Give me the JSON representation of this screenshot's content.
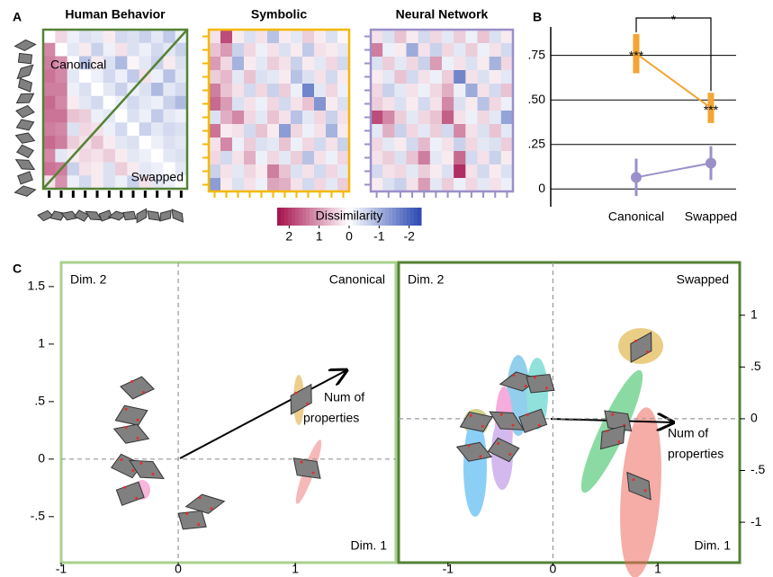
{
  "panel_labels": [
    "A",
    "B",
    "C"
  ],
  "chart_data": [
    {
      "type": "heatmap",
      "title": "Human Behavior",
      "title_color": "#000000",
      "color": "#548235",
      "corner_labels": [
        "Canonical",
        "Swapped"
      ],
      "values": [
        [
          0,
          0.4,
          -0.2,
          -0.4,
          -0.3,
          0.2,
          -0.5,
          -0.4,
          -0.6,
          -0.3,
          -0.7,
          -0.2
        ],
        [
          1.2,
          0,
          -0.3,
          0.2,
          -0.6,
          -0.2,
          0.3,
          -0.4,
          -0.2,
          -0.5,
          -0.3,
          -0.6
        ],
        [
          1.3,
          1.1,
          0,
          -0.8,
          0.2,
          -0.4,
          -0.9,
          0.1,
          -0.3,
          -0.6,
          0.2,
          -0.4
        ],
        [
          1.4,
          1.2,
          -0.3,
          0,
          -0.2,
          -0.5,
          -0.2,
          -0.7,
          0.3,
          -0.2,
          -0.8,
          -0.3
        ],
        [
          1.3,
          1.3,
          -0.2,
          -0.4,
          0,
          -0.3,
          -0.6,
          -0.2,
          -0.4,
          -0.9,
          -0.3,
          -0.5
        ],
        [
          1.5,
          1.2,
          0.2,
          -0.3,
          -0.5,
          0,
          -0.2,
          -0.5,
          -0.3,
          -0.2,
          -0.6,
          -0.9
        ],
        [
          1.4,
          1.4,
          0.6,
          0.5,
          -0.2,
          -0.3,
          0,
          -0.4,
          -0.2,
          -0.7,
          -0.3,
          -0.2
        ],
        [
          1.3,
          1.2,
          -0.4,
          0.4,
          0.3,
          -0.2,
          -0.5,
          0,
          -0.6,
          -0.3,
          -0.5,
          -0.4
        ],
        [
          1.5,
          1.3,
          0.5,
          0.3,
          0.6,
          0.2,
          -0.3,
          -0.4,
          0,
          -0.2,
          -0.4,
          -0.3
        ],
        [
          1.2,
          -0.3,
          0.2,
          0.4,
          0.3,
          0.5,
          0.2,
          -0.3,
          -0.2,
          0,
          -0.3,
          -0.4
        ],
        [
          1.4,
          1.3,
          -0.6,
          0.3,
          0.2,
          -0.4,
          0.5,
          0.2,
          -0.3,
          -0.2,
          0,
          -0.3
        ],
        [
          0.3,
          1.1,
          -0.2,
          -0.5,
          0.2,
          -0.4,
          -0.2,
          -0.6,
          0.3,
          -0.3,
          -0.2,
          0
        ]
      ]
    },
    {
      "type": "heatmap",
      "title": "Symbolic",
      "title_color": "#f5b800",
      "color": "#f5b800",
      "values": [
        [
          0.3,
          1.8,
          0.2,
          -0.4,
          0.3,
          -0.8,
          0.2,
          -0.3,
          0.5,
          0.2,
          -0.4,
          0.1
        ],
        [
          0.6,
          1.0,
          -0.6,
          0.4,
          -0.2,
          0.3,
          -0.4,
          0.2,
          -0.7,
          0.3,
          0.2,
          -0.3
        ],
        [
          1.0,
          0.4,
          -1.0,
          0.2,
          -0.3,
          0.5,
          0.3,
          -0.6,
          0.2,
          -0.3,
          0.4,
          -0.5
        ],
        [
          0.5,
          0.7,
          -0.3,
          0.6,
          -0.4,
          -0.3,
          0.2,
          -0.8,
          -0.4,
          0.3,
          -0.5,
          0.2
        ],
        [
          1.3,
          0.6,
          0.3,
          -0.5,
          0.4,
          -0.6,
          0.5,
          -0.2,
          -1.6,
          -0.3,
          0.4,
          -0.2
        ],
        [
          1.5,
          1.0,
          -0.4,
          0.3,
          -0.2,
          0.4,
          -0.5,
          0.3,
          0.6,
          -1.4,
          0.2,
          -0.4
        ],
        [
          -0.4,
          0.8,
          1.2,
          0.4,
          -0.3,
          0.6,
          0.3,
          -0.8,
          -0.3,
          0.4,
          -0.6,
          0.3
        ],
        [
          1.4,
          0.2,
          0.3,
          -0.5,
          0.6,
          0.2,
          -1.3,
          0.4,
          -0.2,
          0.3,
          -1.0,
          0.2
        ],
        [
          0.3,
          1.2,
          -0.2,
          0.5,
          -0.4,
          -0.3,
          0.6,
          -0.2,
          0.4,
          -0.5,
          0.3,
          -0.6
        ],
        [
          0.4,
          -0.5,
          0.3,
          0.8,
          -0.2,
          0.4,
          -0.3,
          0.5,
          -0.8,
          0.3,
          -0.2,
          0.4
        ],
        [
          -0.6,
          0.3,
          -0.3,
          0.4,
          0.2,
          1.3,
          0.6,
          -0.4,
          0.3,
          -0.5,
          0.4,
          -0.3
        ],
        [
          -1.3,
          0.2,
          -0.4,
          0.3,
          -0.2,
          0.9,
          0.8,
          0.3,
          -0.5,
          0.4,
          -0.3,
          0.5
        ]
      ]
    },
    {
      "type": "heatmap",
      "title": "Neural Network",
      "title_color": "#9b8fca",
      "color": "#9b8fca",
      "values": [
        [
          0.3,
          -0.4,
          0.6,
          0.2,
          -0.5,
          0.4,
          -0.3,
          0.5,
          -0.2,
          0.6,
          -0.4,
          0.2
        ],
        [
          1.3,
          -0.2,
          0.2,
          -1.1,
          0.3,
          -0.6,
          0.4,
          -0.3,
          0.5,
          -0.2,
          0.3,
          -0.5
        ],
        [
          -0.4,
          0.5,
          -0.3,
          0.4,
          -0.6,
          1.0,
          -0.2,
          0.3,
          -0.4,
          0.2,
          -1.0,
          0.4
        ],
        [
          0.2,
          -0.3,
          0.6,
          -0.5,
          0.3,
          -0.2,
          0.5,
          -1.6,
          0.3,
          -0.4,
          0.2,
          -0.3
        ],
        [
          0.4,
          -0.6,
          -0.3,
          0.3,
          -0.2,
          0.4,
          0.8,
          -0.2,
          -1.1,
          0.3,
          -0.5,
          0.6
        ],
        [
          0.5,
          0.3,
          -0.4,
          0.2,
          -0.5,
          0.3,
          1.2,
          -0.4,
          0.2,
          -0.8,
          0.4,
          -0.2
        ],
        [
          1.8,
          1.2,
          0.5,
          -0.3,
          0.4,
          0.6,
          1.6,
          0.3,
          -0.2,
          0.4,
          -0.3,
          -1.2
        ],
        [
          -0.3,
          0.8,
          -0.6,
          0.4,
          -0.3,
          0.5,
          -0.5,
          1.2,
          0.3,
          -0.4,
          0.6,
          -0.3
        ],
        [
          0.4,
          -0.3,
          0.2,
          -0.5,
          0.7,
          -0.2,
          0.3,
          -0.6,
          0.4,
          -0.3,
          -0.4,
          0.5
        ],
        [
          0.3,
          0.5,
          -0.4,
          0.6,
          1.3,
          -0.3,
          0.2,
          1.5,
          -0.5,
          0.3,
          -0.6,
          0.2
        ],
        [
          -0.5,
          0.3,
          0.4,
          -0.3,
          0.5,
          0.2,
          -0.4,
          2.1,
          0.3,
          -0.5,
          0.2,
          -0.4
        ],
        [
          0.2,
          -0.4,
          -0.6,
          0.3,
          1.0,
          -0.3,
          0.5,
          -0.2,
          0.4,
          -0.3,
          0.3,
          -0.2
        ]
      ]
    },
    {
      "type": "colorbar",
      "title": "Dissimilarity",
      "xlim": [
        2.4,
        -2.4
      ],
      "xticks": [
        2,
        1,
        0,
        -1,
        -2
      ],
      "scale_colors": [
        "#a5104c",
        "#ffffff",
        "#2a48b0"
      ]
    },
    {
      "type": "line",
      "categories": [
        "Canonical",
        "Swapped"
      ],
      "category_colors": [
        "#a9d18e",
        "#548235"
      ],
      "ylim": [
        -0.1,
        0.91
      ],
      "yticks": [
        0,
        {
          "value": 0.25,
          "label": ".25"
        },
        {
          "value": 0.5,
          "label": ".50"
        },
        {
          "value": 0.75,
          "label": ".75"
        }
      ],
      "grid": true,
      "bracket_label": "*",
      "series": [
        {
          "color": "#f4a533",
          "values": [
            0.76,
            0.455
          ],
          "errors": [
            0.11,
            0.085
          ],
          "significance": [
            "***",
            "***"
          ]
        },
        {
          "color": "#9b8fca",
          "values": [
            0.065,
            0.145
          ],
          "errors": [
            0.105,
            0.095
          ]
        }
      ]
    },
    {
      "type": "scatter",
      "label": "Canonical",
      "label_color": "#a9d18e",
      "color": "#a9d18e",
      "x_label": "Dim. 1",
      "y_label": "Dim. 2",
      "annotation": [
        "Num of",
        "properties"
      ],
      "zero_lines": true,
      "xlim": [
        -1,
        1.86
      ],
      "xticks": [
        -1,
        0,
        1
      ],
      "ylim": [
        -0.9,
        1.71
      ],
      "yticks": [
        {
          "value": 1.5,
          "label": "1.5"
        },
        1,
        {
          "value": 0.5,
          "label": ".5"
        },
        0,
        {
          "value": -0.5,
          "label": "-.5"
        }
      ],
      "x": [
        -0.35,
        -0.4,
        -0.4,
        -0.44,
        -0.27,
        -0.41,
        0.23,
        0.12,
        1.05,
        1.1
      ],
      "values": [
        0.62,
        0.38,
        0.22,
        -0.06,
        -0.09,
        -0.3,
        -0.39,
        -0.53,
        0.52,
        -0.08
      ]
    },
    {
      "type": "scatter",
      "label": "Swapped",
      "label_color": "#548235",
      "color": "#548235",
      "x_label": "Dim. 1",
      "y_label": "Dim. 2",
      "annotation": [
        "Num of",
        "properties"
      ],
      "zero_lines": true,
      "axis": "y2",
      "xlim": [
        -1.47,
        1.78
      ],
      "xticks": [
        -1,
        0,
        1
      ],
      "y2lim": [
        -1.39,
        1.51
      ],
      "y2ticks": [
        1,
        {
          "value": 0.5,
          "label": ".5"
        },
        0,
        {
          "value": -0.5,
          "label": "-.5"
        },
        -1
      ],
      "x": [
        -0.73,
        -0.75,
        -0.47,
        -0.44,
        -0.19,
        -0.32,
        -0.12,
        0.84,
        0.62,
        0.57,
        0.82
      ],
      "values": [
        -0.03,
        -0.32,
        -0.3,
        -0.02,
        -0.02,
        0.36,
        0.34,
        0.69,
        -0.02,
        -0.18,
        -0.65
      ]
    }
  ]
}
